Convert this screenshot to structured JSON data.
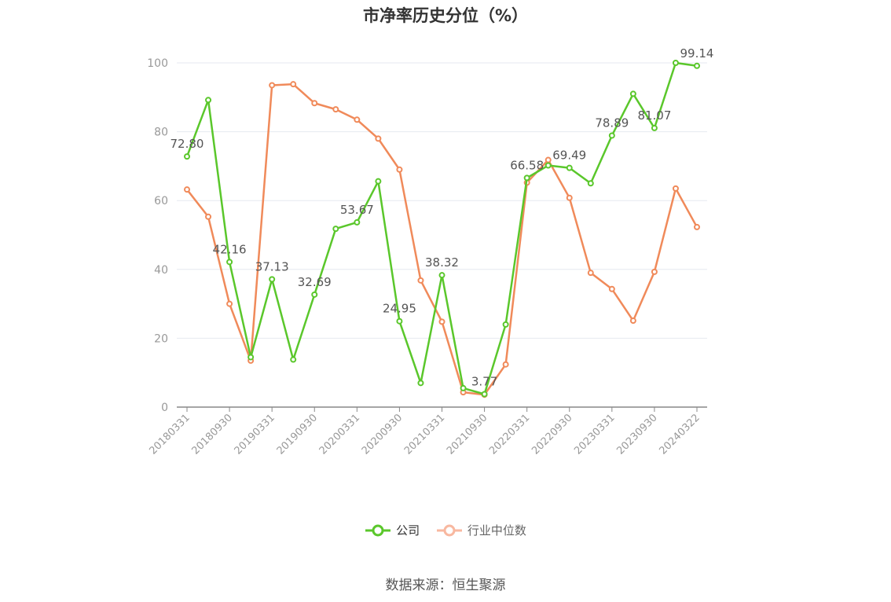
{
  "title": "市净率历史分位（%）",
  "source": "数据来源：恒生聚源",
  "colors": {
    "company": "#5ac72b",
    "industry": "#f08a5a",
    "grid": "#e6e9f0",
    "axis": "#888888",
    "label": "#666666"
  },
  "legend": [
    {
      "name": "公司",
      "color": "#5ac72b",
      "icon": "circle-line-icon"
    },
    {
      "name": "行业中位数",
      "color": "#f8b8a0",
      "icon": "circle-line-icon"
    }
  ],
  "chart_data": {
    "type": "line",
    "title": "市净率历史分位（%）",
    "ylim": [
      0,
      100
    ],
    "yticks": [
      0,
      20,
      40,
      60,
      80,
      100
    ],
    "grid": true,
    "legend_position": "bottom",
    "x": [
      "20180331",
      "20180630",
      "20180930",
      "20181231",
      "20190331",
      "20190630",
      "20190930",
      "20191231",
      "20200331",
      "20200630",
      "20200930",
      "20201231",
      "20210331",
      "20210630",
      "20210930",
      "20211231",
      "20220331",
      "20220630",
      "20220930",
      "20221231",
      "20230331",
      "20230630",
      "20230930",
      "20231231",
      "20240322"
    ],
    "xticks": [
      "20180331",
      "20180930",
      "20190331",
      "20190930",
      "20200331",
      "20200930",
      "20210331",
      "20210930",
      "20220331",
      "20220930",
      "20230331",
      "20230930",
      "20240322"
    ],
    "series": [
      {
        "name": "公司",
        "color": "#5ac72b",
        "values": [
          72.8,
          89.2,
          42.16,
          14.5,
          37.13,
          13.8,
          32.69,
          51.8,
          53.67,
          65.6,
          24.95,
          7.0,
          38.32,
          5.5,
          3.77,
          24.0,
          66.58,
          70.2,
          69.49,
          65.0,
          78.89,
          91.0,
          81.07,
          100.0,
          99.14
        ]
      },
      {
        "name": "行业中位数",
        "color": "#f08a5a",
        "values": [
          63.2,
          55.3,
          30.0,
          13.5,
          93.5,
          93.8,
          88.3,
          86.5,
          83.5,
          78.0,
          69.0,
          36.8,
          24.8,
          4.3,
          3.6,
          12.4,
          65.2,
          71.8,
          60.8,
          39.0,
          34.3,
          25.1,
          39.3,
          63.5,
          52.3
        ]
      }
    ],
    "data_labels": [
      {
        "index": 0,
        "text": "72.80"
      },
      {
        "index": 2,
        "text": "42.16"
      },
      {
        "index": 4,
        "text": "37.13"
      },
      {
        "index": 6,
        "text": "32.69"
      },
      {
        "index": 8,
        "text": "53.67"
      },
      {
        "index": 10,
        "text": "24.95"
      },
      {
        "index": 12,
        "text": "38.32"
      },
      {
        "index": 14,
        "text": "3.77"
      },
      {
        "index": 16,
        "text": "66.58"
      },
      {
        "index": 18,
        "text": "69.49"
      },
      {
        "index": 20,
        "text": "78.89"
      },
      {
        "index": 22,
        "text": "81.07"
      },
      {
        "index": 24,
        "text": "99.14"
      }
    ]
  }
}
